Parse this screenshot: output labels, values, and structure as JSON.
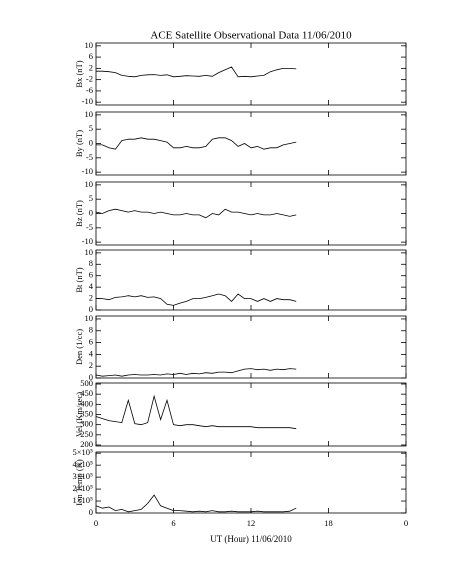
{
  "title": "ACE Satellite Observational Data   11/06/2010",
  "xlabel": "UT (Hour)   11/06/2010",
  "chart_data": [
    {
      "type": "line",
      "ylabel": "Bx (nT)",
      "color": "#000000",
      "x": [
        0,
        0.5,
        1,
        1.5,
        2,
        2.5,
        3,
        3.5,
        4,
        4.5,
        5,
        5.5,
        6,
        6.5,
        7,
        7.5,
        8,
        8.5,
        9,
        9.5,
        10,
        10.5,
        11,
        11.5,
        12,
        12.5,
        13,
        13.5,
        14,
        14.5,
        15,
        15.5
      ],
      "values": [
        1,
        1,
        0.8,
        0.5,
        -0.5,
        -0.8,
        -1,
        -0.5,
        -0.3,
        -0.2,
        -0.5,
        -0.3,
        -1,
        -0.8,
        -0.6,
        -0.7,
        -0.8,
        -0.5,
        -0.8,
        0.5,
        1.5,
        2.5,
        -1,
        -0.8,
        -1,
        -0.7,
        -0.5,
        0.8,
        1.5,
        2,
        2,
        1.8
      ],
      "xlim": [
        0,
        24
      ],
      "xticks": [
        0,
        6,
        12,
        18,
        {
          "value": 24,
          "label": "0"
        }
      ],
      "ylim": [
        -11,
        11
      ],
      "yticks": [
        -10,
        -6,
        -2,
        2,
        6,
        10
      ]
    },
    {
      "type": "line",
      "ylabel": "By (nT)",
      "color": "#000000",
      "x": [
        0,
        0.5,
        1,
        1.5,
        2,
        2.5,
        3,
        3.5,
        4,
        4.5,
        5,
        5.5,
        6,
        6.5,
        7,
        7.5,
        8,
        8.5,
        9,
        9.5,
        10,
        10.5,
        11,
        11.5,
        12,
        12.5,
        13,
        13.5,
        14,
        14.5,
        15,
        15.5
      ],
      "values": [
        -0.5,
        -0.5,
        -1.5,
        -2,
        1,
        1.5,
        1.5,
        2,
        1.5,
        1.5,
        1,
        0.5,
        -1.5,
        -1.5,
        -1,
        -1.5,
        -1.5,
        -1,
        1.5,
        2,
        2,
        1,
        -1,
        0,
        -1.5,
        -1,
        -2,
        -1.5,
        -1.5,
        -0.5,
        0,
        0.5
      ],
      "xlim": [
        0,
        24
      ],
      "xticks": [
        0,
        6,
        12,
        18,
        {
          "value": 24,
          "label": "0"
        }
      ],
      "ylim": [
        -11,
        11
      ],
      "yticks": [
        -10,
        -5,
        0,
        5,
        10
      ]
    },
    {
      "type": "line",
      "ylabel": "Bz (nT)",
      "color": "#000000",
      "x": [
        0,
        0.5,
        1,
        1.5,
        2,
        2.5,
        3,
        3.5,
        4,
        4.5,
        5,
        5.5,
        6,
        6.5,
        7,
        7.5,
        8,
        8.5,
        9,
        9.5,
        10,
        10.5,
        11,
        11.5,
        12,
        12.5,
        13,
        13.5,
        14,
        14.5,
        15,
        15.5
      ],
      "values": [
        0.5,
        0,
        1,
        1.5,
        1,
        0.5,
        1,
        0.5,
        0.5,
        0,
        0.5,
        0,
        -0.5,
        -0.5,
        0,
        -0.5,
        -0.5,
        -1.5,
        0,
        -0.5,
        1.5,
        0.5,
        0.5,
        0,
        -0.5,
        0,
        -0.5,
        -0.5,
        0,
        -0.5,
        -1,
        -0.5
      ],
      "xlim": [
        0,
        24
      ],
      "xticks": [
        0,
        6,
        12,
        18,
        {
          "value": 24,
          "label": "0"
        }
      ],
      "ylim": [
        -11,
        11
      ],
      "yticks": [
        -10,
        -5,
        0,
        5,
        10
      ]
    },
    {
      "type": "line",
      "ylabel": "Bt (nT)",
      "color": "#000000",
      "x": [
        0,
        0.5,
        1,
        1.5,
        2,
        2.5,
        3,
        3.5,
        4,
        4.5,
        5,
        5.5,
        6,
        6.5,
        7,
        7.5,
        8,
        8.5,
        9,
        9.5,
        10,
        10.5,
        11,
        11.5,
        12,
        12.5,
        13,
        13.5,
        14,
        14.5,
        15,
        15.5
      ],
      "values": [
        2,
        2,
        1.8,
        2.2,
        2.3,
        2.5,
        2.3,
        2.5,
        2.2,
        2.3,
        2,
        1,
        0.8,
        1.2,
        1.5,
        2,
        2,
        2.2,
        2.5,
        2.8,
        2.5,
        1.5,
        2.8,
        2,
        2,
        1.5,
        2,
        1.5,
        2,
        1.8,
        1.8,
        1.5
      ],
      "xlim": [
        0,
        24
      ],
      "xticks": [
        0,
        6,
        12,
        18,
        {
          "value": 24,
          "label": "0"
        }
      ],
      "ylim": [
        0,
        10.5
      ],
      "yticks": [
        0,
        2,
        4,
        6,
        8,
        10
      ]
    },
    {
      "type": "line",
      "ylabel": "Den (1/cc)",
      "color": "#000000",
      "x": [
        0,
        0.5,
        1,
        1.5,
        2,
        2.5,
        3,
        3.5,
        4,
        4.5,
        5,
        5.5,
        6,
        6.5,
        7,
        7.5,
        8,
        8.5,
        9,
        9.5,
        10,
        10.5,
        11,
        11.5,
        12,
        12.5,
        13,
        13.5,
        14,
        14.5,
        15,
        15.5
      ],
      "values": [
        0.5,
        0.3,
        0.4,
        0.5,
        0.3,
        0.5,
        0.6,
        0.5,
        0.5,
        0.6,
        0.5,
        0.7,
        0.6,
        0.8,
        0.6,
        0.8,
        0.7,
        0.9,
        0.8,
        1,
        1,
        0.9,
        1.2,
        1.5,
        1.6,
        1.4,
        1.5,
        1.3,
        1.5,
        1.4,
        1.6,
        1.5
      ],
      "xlim": [
        0,
        24
      ],
      "xticks": [
        0,
        6,
        12,
        18,
        {
          "value": 24,
          "label": "0"
        }
      ],
      "ylim": [
        0,
        10.5
      ],
      "yticks": [
        0,
        2,
        4,
        6,
        8,
        10
      ]
    },
    {
      "type": "line",
      "ylabel": "Vel (Km/sec)",
      "color": "#000000",
      "x": [
        0,
        0.5,
        1,
        1.5,
        2,
        2.5,
        3,
        3.5,
        4,
        4.5,
        5,
        5.5,
        6,
        6.5,
        7,
        7.5,
        8,
        8.5,
        9,
        9.5,
        10,
        10.5,
        11,
        11.5,
        12,
        12.5,
        13,
        13.5,
        14,
        14.5,
        15,
        15.5
      ],
      "values": [
        340,
        330,
        320,
        315,
        310,
        420,
        305,
        300,
        310,
        440,
        325,
        420,
        300,
        295,
        300,
        300,
        295,
        290,
        295,
        290,
        290,
        290,
        290,
        290,
        290,
        285,
        285,
        285,
        285,
        285,
        285,
        280
      ],
      "xlim": [
        0,
        24
      ],
      "xticks": [
        0,
        6,
        12,
        18,
        {
          "value": 24,
          "label": "0"
        }
      ],
      "ylim": [
        195,
        505
      ],
      "yticks": [
        200,
        250,
        300,
        350,
        400,
        450,
        500
      ]
    },
    {
      "type": "line",
      "ylabel": "Ion Temp (K)",
      "color": "#000000",
      "x": [
        0,
        0.5,
        1,
        1.5,
        2,
        2.5,
        3,
        3.5,
        4,
        4.5,
        5,
        5.5,
        6,
        6.5,
        7,
        7.5,
        8,
        8.5,
        9,
        9.5,
        10,
        10.5,
        11,
        11.5,
        12,
        12.5,
        13,
        13.5,
        14,
        14.5,
        15,
        15.5
      ],
      "values": [
        60000,
        40000,
        50000,
        20000,
        30000,
        10000,
        20000,
        30000,
        80000,
        150000,
        60000,
        40000,
        20000,
        20000,
        15000,
        10000,
        15000,
        10000,
        20000,
        10000,
        10000,
        15000,
        10000,
        10000,
        10000,
        15000,
        10000,
        10000,
        10000,
        10000,
        15000,
        40000
      ],
      "xlim": [
        0,
        24
      ],
      "xticks": [
        0,
        6,
        12,
        18,
        {
          "value": 24,
          "label": "0"
        }
      ],
      "ylim": [
        0,
        510000
      ],
      "yticks": [
        0,
        {
          "value": 100000,
          "label": "1×10⁵"
        },
        {
          "value": 200000,
          "label": "2×10⁵"
        },
        {
          "value": 300000,
          "label": "3×10⁵"
        },
        {
          "value": 400000,
          "label": "4×10⁵"
        },
        {
          "value": 500000,
          "label": "5×10⁵"
        }
      ]
    }
  ]
}
